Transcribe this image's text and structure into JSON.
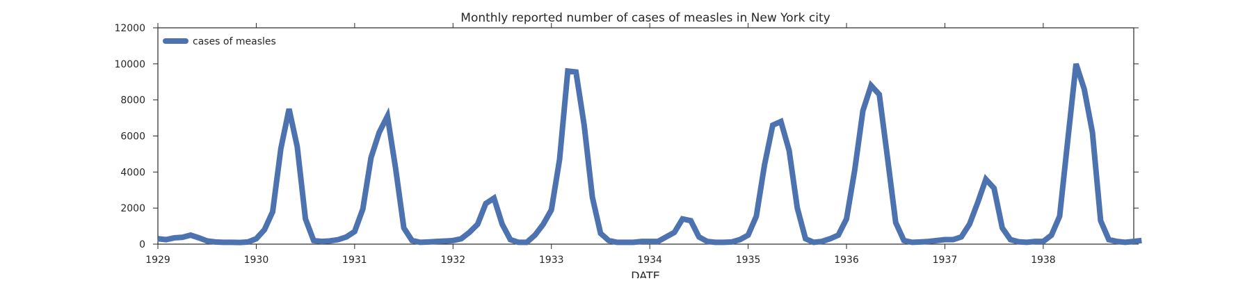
{
  "chart_data": {
    "type": "line",
    "title": "Monthly reported number of cases of measles in New York city",
    "xlabel": "DATE",
    "ylabel": "",
    "xlim": [
      1929.0,
      1938.92
    ],
    "ylim": [
      0,
      12000
    ],
    "x_ticks": [
      1929,
      1930,
      1931,
      1932,
      1933,
      1934,
      1935,
      1936,
      1937,
      1938
    ],
    "x_tick_labels": [
      "1929",
      "1930",
      "1931",
      "1932",
      "1933",
      "1934",
      "1935",
      "1936",
      "1937",
      "1938"
    ],
    "y_ticks": [
      0,
      2000,
      4000,
      6000,
      8000,
      10000,
      12000
    ],
    "y_tick_labels": [
      "0",
      "2000",
      "4000",
      "6000",
      "8000",
      "10000",
      "12000"
    ],
    "grid": false,
    "legend_position": "top-left",
    "series": [
      {
        "name": "cases of measles",
        "color": "#4c72b0",
        "values": [
          300,
          250,
          350,
          380,
          500,
          350,
          180,
          120,
          100,
          100,
          90,
          120,
          300,
          800,
          1800,
          5300,
          7500,
          5400,
          1400,
          200,
          150,
          180,
          250,
          400,
          700,
          1950,
          4800,
          6200,
          7100,
          4200,
          900,
          200,
          100,
          120,
          150,
          170,
          200,
          300,
          650,
          1100,
          2250,
          2550,
          1100,
          250,
          100,
          100,
          500,
          1100,
          1900,
          4700,
          9600,
          9550,
          6600,
          2600,
          600,
          200,
          100,
          100,
          100,
          150,
          150,
          150,
          400,
          650,
          1400,
          1300,
          400,
          150,
          100,
          100,
          120,
          250,
          500,
          1550,
          4400,
          6600,
          6800,
          5200,
          2000,
          300,
          100,
          150,
          300,
          500,
          1400,
          4100,
          7400,
          8800,
          8300,
          4800,
          1200,
          200,
          100,
          120,
          150,
          200,
          250,
          250,
          400,
          1100,
          2300,
          3600,
          3100,
          900,
          250,
          130,
          100,
          150,
          150,
          500,
          1550,
          5800,
          10000,
          8600,
          6200,
          1300,
          250,
          150,
          100,
          150,
          200
        ]
      }
    ]
  }
}
